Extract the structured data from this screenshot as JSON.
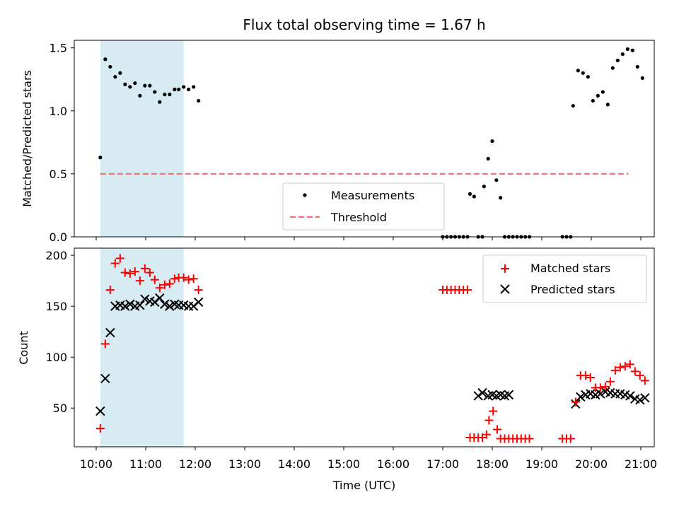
{
  "chart_data": {
    "title": "Flux total observing time = 1.67 h",
    "xlabel": "Time (UTC)",
    "x_ticks": [
      "10:00",
      "11:00",
      "12:00",
      "13:00",
      "14:00",
      "15:00",
      "16:00",
      "17:00",
      "18:00",
      "19:00",
      "20:00",
      "21:00"
    ],
    "highlight_span": [
      "10:05",
      "11:46"
    ],
    "highlight_color": "#add8e6",
    "top": {
      "type": "scatter",
      "ylabel": "Matched/Predicted stars",
      "ylim": [
        0,
        1.56
      ],
      "y_ticks": [
        "0.0",
        "0.5",
        "1.0",
        "1.5"
      ],
      "legend": [
        "Measurements",
        "Threshold"
      ],
      "threshold": {
        "value": 0.5,
        "from": "10:05",
        "to": "20:45",
        "color": "#ff6666"
      },
      "measurements": [
        [
          "10:05",
          0.63
        ],
        [
          "10:11",
          1.41
        ],
        [
          "10:17",
          1.35
        ],
        [
          "10:23",
          1.27
        ],
        [
          "10:29",
          1.3
        ],
        [
          "10:35",
          1.21
        ],
        [
          "10:41",
          1.19
        ],
        [
          "10:47",
          1.22
        ],
        [
          "10:53",
          1.12
        ],
        [
          "10:59",
          1.2
        ],
        [
          "11:05",
          1.2
        ],
        [
          "11:11",
          1.15
        ],
        [
          "11:17",
          1.07
        ],
        [
          "11:23",
          1.13
        ],
        [
          "11:29",
          1.13
        ],
        [
          "11:35",
          1.17
        ],
        [
          "11:40",
          1.17
        ],
        [
          "11:46",
          1.19
        ],
        [
          "11:52",
          1.17
        ],
        [
          "11:58",
          1.19
        ],
        [
          "12:04",
          1.08
        ],
        [
          "17:00",
          0
        ],
        [
          "17:05",
          0
        ],
        [
          "17:10",
          0
        ],
        [
          "17:15",
          0
        ],
        [
          "17:20",
          0
        ],
        [
          "17:25",
          0
        ],
        [
          "17:30",
          0
        ],
        [
          "17:33",
          0.34
        ],
        [
          "17:38",
          0.32
        ],
        [
          "17:43",
          0
        ],
        [
          "17:48",
          0
        ],
        [
          "17:50",
          0.4
        ],
        [
          "17:55",
          0.62
        ],
        [
          "18:00",
          0.76
        ],
        [
          "18:05",
          0.45
        ],
        [
          "18:10",
          0.31
        ],
        [
          "18:15",
          0
        ],
        [
          "18:20",
          0
        ],
        [
          "18:25",
          0
        ],
        [
          "18:30",
          0
        ],
        [
          "18:35",
          0
        ],
        [
          "18:40",
          0
        ],
        [
          "18:45",
          0
        ],
        [
          "19:25",
          0
        ],
        [
          "19:30",
          0
        ],
        [
          "19:35",
          0
        ],
        [
          "19:38",
          1.04
        ],
        [
          "19:44",
          1.32
        ],
        [
          "19:50",
          1.3
        ],
        [
          "19:56",
          1.27
        ],
        [
          "20:02",
          1.08
        ],
        [
          "20:08",
          1.12
        ],
        [
          "20:14",
          1.15
        ],
        [
          "20:20",
          1.05
        ],
        [
          "20:26",
          1.34
        ],
        [
          "20:32",
          1.4
        ],
        [
          "20:38",
          1.45
        ],
        [
          "20:44",
          1.49
        ],
        [
          "20:50",
          1.48
        ],
        [
          "20:56",
          1.35
        ],
        [
          "21:02",
          1.26
        ]
      ]
    },
    "bottom": {
      "type": "scatter",
      "ylabel": "Count",
      "ylim": [
        12,
        207
      ],
      "y_ticks": [
        "50",
        "100",
        "150",
        "200"
      ],
      "legend": [
        "Matched stars",
        "Predicted stars"
      ],
      "colors": {
        "matched": "#ff0000",
        "predicted": "#000000"
      },
      "matched": [
        [
          "10:05",
          30
        ],
        [
          "10:11",
          113
        ],
        [
          "10:17",
          166
        ],
        [
          "10:23",
          192
        ],
        [
          "10:29",
          197
        ],
        [
          "10:35",
          183
        ],
        [
          "10:41",
          182
        ],
        [
          "10:47",
          184
        ],
        [
          "10:53",
          175
        ],
        [
          "10:59",
          187
        ],
        [
          "11:05",
          183
        ],
        [
          "11:11",
          176
        ],
        [
          "11:17",
          168
        ],
        [
          "11:23",
          171
        ],
        [
          "11:29",
          172
        ],
        [
          "11:35",
          177
        ],
        [
          "11:40",
          178
        ],
        [
          "11:46",
          178
        ],
        [
          "11:52",
          176
        ],
        [
          "11:58",
          177
        ],
        [
          "12:04",
          166
        ],
        [
          "17:00",
          166
        ],
        [
          "17:05",
          166
        ],
        [
          "17:10",
          166
        ],
        [
          "17:15",
          166
        ],
        [
          "17:20",
          166
        ],
        [
          "17:25",
          166
        ],
        [
          "17:30",
          166
        ],
        [
          "17:33",
          21
        ],
        [
          "17:38",
          21
        ],
        [
          "17:43",
          21
        ],
        [
          "17:48",
          21
        ],
        [
          "17:53",
          24
        ],
        [
          "17:56",
          38
        ],
        [
          "18:01",
          47
        ],
        [
          "18:06",
          29
        ],
        [
          "18:10",
          20
        ],
        [
          "18:15",
          20
        ],
        [
          "18:20",
          20
        ],
        [
          "18:25",
          20
        ],
        [
          "18:30",
          20
        ],
        [
          "18:35",
          20
        ],
        [
          "18:40",
          20
        ],
        [
          "18:45",
          20
        ],
        [
          "19:25",
          20
        ],
        [
          "19:30",
          20
        ],
        [
          "19:35",
          20
        ],
        [
          "19:41",
          56
        ],
        [
          "19:47",
          82
        ],
        [
          "19:53",
          82
        ],
        [
          "19:59",
          80
        ],
        [
          "20:05",
          70
        ],
        [
          "20:11",
          70
        ],
        [
          "20:17",
          71
        ],
        [
          "20:23",
          76
        ],
        [
          "20:29",
          87
        ],
        [
          "20:35",
          90
        ],
        [
          "20:41",
          91
        ],
        [
          "20:47",
          93
        ],
        [
          "20:53",
          86
        ],
        [
          "20:59",
          82
        ],
        [
          "21:05",
          77
        ]
      ],
      "predicted": [
        [
          "10:05",
          47
        ],
        [
          "10:11",
          79
        ],
        [
          "10:17",
          124
        ],
        [
          "10:23",
          150
        ],
        [
          "10:29",
          151
        ],
        [
          "10:35",
          150
        ],
        [
          "10:41",
          152
        ],
        [
          "10:47",
          150
        ],
        [
          "10:53",
          151
        ],
        [
          "10:59",
          157
        ],
        [
          "11:05",
          155
        ],
        [
          "11:11",
          154
        ],
        [
          "11:17",
          158
        ],
        [
          "11:23",
          152
        ],
        [
          "11:29",
          150
        ],
        [
          "11:35",
          152
        ],
        [
          "11:40",
          151
        ],
        [
          "11:46",
          151
        ],
        [
          "11:52",
          150
        ],
        [
          "11:58",
          150
        ],
        [
          "12:04",
          154
        ],
        [
          "17:43",
          62
        ],
        [
          "17:48",
          65
        ],
        [
          "17:55",
          62
        ],
        [
          "18:00",
          63
        ],
        [
          "18:05",
          62
        ],
        [
          "18:10",
          63
        ],
        [
          "18:15",
          62
        ],
        [
          "18:20",
          63
        ],
        [
          "19:41",
          54
        ],
        [
          "19:47",
          61
        ],
        [
          "19:53",
          63
        ],
        [
          "19:59",
          64
        ],
        [
          "20:05",
          63
        ],
        [
          "20:11",
          64
        ],
        [
          "20:17",
          66
        ],
        [
          "20:23",
          65
        ],
        [
          "20:29",
          64
        ],
        [
          "20:35",
          64
        ],
        [
          "20:41",
          63
        ],
        [
          "20:47",
          62
        ],
        [
          "20:53",
          59
        ],
        [
          "20:59",
          58
        ],
        [
          "21:05",
          60
        ]
      ]
    }
  }
}
